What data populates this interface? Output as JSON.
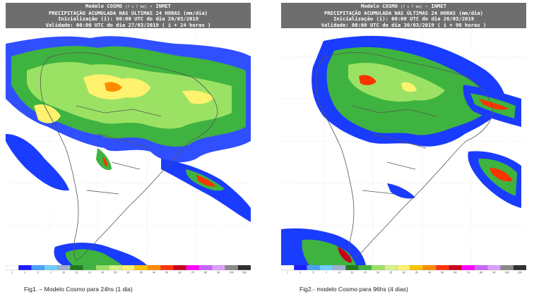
{
  "figures": [
    {
      "header": {
        "line1": "Modelo COSMO",
        "line1_small": "[7 x 7 km]",
        "line1_tail": "- INMET",
        "line2": "PRECIPITAÇÃO ACUMULADA NAS ÚLTIMAS 24 HORAS (mm/dia)",
        "line3": "Inicialização (i): 00:00 UTC do dia 26/03/2019",
        "line4": "Validade: 00:00 UTC do dia 27/03/2019 ( i + 24 horas )"
      },
      "caption": "Fig1. – Modelo Cosmo para 24hs (1 dia)"
    },
    {
      "header": {
        "line1": "Modelo COSMO",
        "line1_small": "[7 x 7 km]",
        "line1_tail": "- INMET",
        "line2": "PRECIPITAÇÃO ACUMULADA NAS ÚLTIMAS 24 HORAS (mm/dia)",
        "line3": "Inicialização (i): 00:00 UTC do dia 26/03/2019",
        "line4": "Validade: 00:00 UTC do dia 30/03/2019 ( i + 96 horas )"
      },
      "caption": "Fig2.- modelo Cosmo para 96hs (4 dias)"
    }
  ],
  "scale": {
    "labels": [
      "1",
      "2",
      "5",
      "7",
      "10",
      "12",
      "15",
      "20",
      "25",
      "30",
      "35",
      "40",
      "50",
      "60",
      "70",
      "80",
      "90",
      "100",
      "200"
    ],
    "colors": [
      "#ffffff",
      "#1a1aff",
      "#4aa0ff",
      "#6fd0ff",
      "#9fb0d0",
      "#1e7b1e",
      "#3fb33f",
      "#9be264",
      "#d8f28c",
      "#fff26e",
      "#ffc400",
      "#ff8c00",
      "#ff3300",
      "#c8001e",
      "#ff00ff",
      "#c864ff",
      "#dca0ff",
      "#8a8a8a",
      "#303030"
    ]
  },
  "map": {
    "land_color": "#ffffff",
    "ocean_color": "#ffffff",
    "border_color": "#555555"
  }
}
